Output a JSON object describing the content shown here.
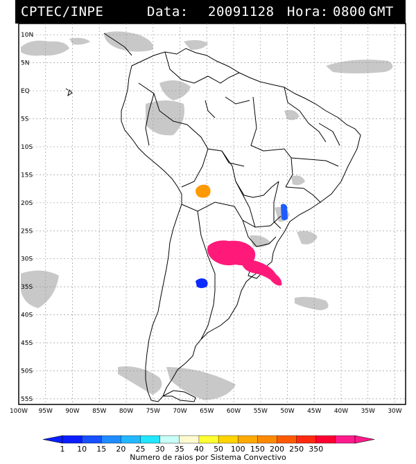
{
  "header": {
    "source": "CPTEC/INPE",
    "date_label": "Data:",
    "date_value": "20091128",
    "hour_label": "Hora:",
    "hour_value": "0800",
    "timezone": "GMT"
  },
  "map": {
    "lat_labels": [
      "10N",
      "5N",
      "EQ",
      "5S",
      "10S",
      "15S",
      "20S",
      "25S",
      "30S",
      "35S",
      "40S",
      "45S",
      "50S",
      "55S"
    ],
    "lon_labels": [
      "100W",
      "95W",
      "90W",
      "85W",
      "80W",
      "75W",
      "70W",
      "65W",
      "60W",
      "55W",
      "50W",
      "45W",
      "40W",
      "35W",
      "30W"
    ],
    "lat_range": [
      -56,
      12
    ],
    "lon_range": [
      -100,
      -28
    ],
    "convective_systems": [
      {
        "name": "system-bolivia",
        "lon": -64.3,
        "lat": -17.7,
        "rays_class": "100",
        "color": "#ff9900"
      },
      {
        "name": "system-sao-paulo",
        "lon": -48.8,
        "lat": -21.2,
        "rays_class": "1-10",
        "color": "#1e5cff"
      },
      {
        "name": "system-argentina-north",
        "lon": -60.0,
        "lat": -28.8,
        "rays_class": "350",
        "color": "#ff1a7a"
      },
      {
        "name": "system-uruguay",
        "lon": -53.0,
        "lat": -32.5,
        "rays_class": "350",
        "color": "#ff1a7a"
      },
      {
        "name": "system-argentina-south",
        "lon": -64.8,
        "lat": -33.9,
        "rays_class": "1",
        "color": "#0d2bff"
      }
    ]
  },
  "colorbar": {
    "title": "Numero de raios por Sistema Convectivo",
    "labels": [
      "1",
      "10",
      "15",
      "20",
      "25",
      "30",
      "35",
      "40",
      "50",
      "100",
      "150",
      "200",
      "250",
      "350"
    ],
    "colors": [
      "#0a1eff",
      "#1750ff",
      "#1f8cff",
      "#22b8ff",
      "#22e6ff",
      "#c8fff8",
      "#fffad0",
      "#ffff33",
      "#ffd400",
      "#ffaa00",
      "#ff8a00",
      "#ff5a00",
      "#ff2a10",
      "#ff0033",
      "#ff1a8c"
    ]
  }
}
